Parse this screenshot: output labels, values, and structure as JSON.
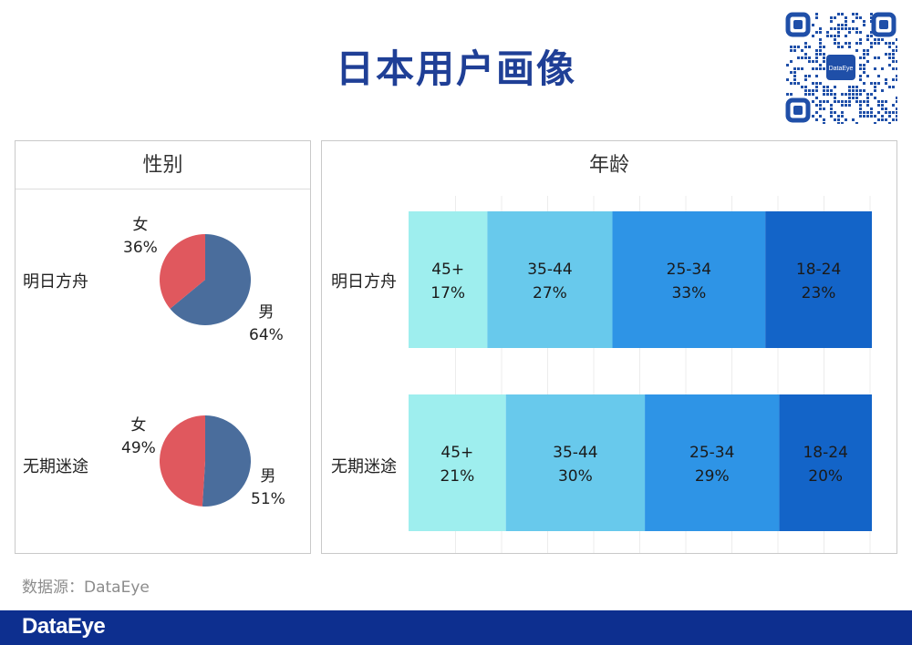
{
  "title": "日本用户画像",
  "source": "数据源：DataEye",
  "footer": {
    "logo": "DataEye",
    "qr_text": "DataEye"
  },
  "colors": {
    "title": "#1f3f96",
    "male": "#4a6d9c",
    "female": "#e0585e",
    "age_45_plus": "#9eeeee",
    "age_35_44": "#68c9ec",
    "age_25_34": "#2e94e6",
    "age_18_24": "#1364c8",
    "footer": "#0d2f8f"
  },
  "chart_data": [
    {
      "type": "pie",
      "title": "性别",
      "charts": [
        {
          "name": "明日方舟",
          "slices": [
            {
              "label": "男",
              "value": 64,
              "display": "64%"
            },
            {
              "label": "女",
              "value": 36,
              "display": "36%"
            }
          ]
        },
        {
          "name": "无期迷途",
          "slices": [
            {
              "label": "男",
              "value": 51,
              "display": "51%"
            },
            {
              "label": "女",
              "value": 49,
              "display": "49%"
            }
          ]
        }
      ]
    },
    {
      "type": "bar",
      "orientation": "horizontal",
      "stacked": "100%",
      "title": "年龄",
      "categories": [
        "明日方舟",
        "无期迷途"
      ],
      "series": [
        {
          "name": "45+",
          "values": [
            17,
            21
          ],
          "labels": [
            "17%",
            "21%"
          ]
        },
        {
          "name": "35-44",
          "values": [
            27,
            30
          ],
          "labels": [
            "27%",
            "30%"
          ]
        },
        {
          "name": "25-34",
          "values": [
            33,
            29
          ],
          "labels": [
            "33%",
            "29%"
          ]
        },
        {
          "name": "18-24",
          "values": [
            23,
            20
          ],
          "labels": [
            "23%",
            "20%"
          ]
        }
      ],
      "grid": true
    }
  ]
}
